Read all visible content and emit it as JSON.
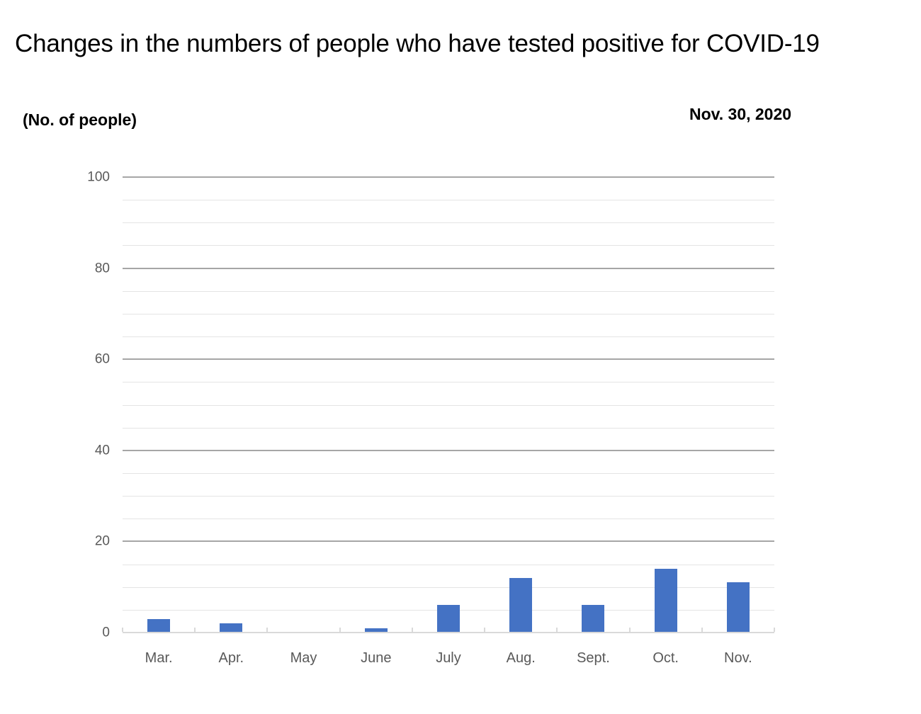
{
  "header": {
    "title": "Changes in the numbers of people who have tested positive for COVID-19",
    "unit_label": "(No. of people)",
    "date_label": "Nov. 30, 2020"
  },
  "chart_data": {
    "type": "bar",
    "title": "Changes in the numbers of people who have tested positive for COVID-19",
    "ylabel": "(No. of people)",
    "annotation": "Nov. 30, 2020",
    "categories": [
      "Mar.",
      "Apr.",
      "May",
      "June",
      "July",
      "Aug.",
      "Sept.",
      "Oct.",
      "Nov."
    ],
    "values": [
      3,
      2,
      0,
      1,
      6,
      12,
      6,
      14,
      11
    ],
    "xlabel": "",
    "ylim": [
      0,
      100
    ],
    "y_major_step": 20,
    "y_minor_step": 5,
    "y_tick_labels": [
      "0",
      "20",
      "40",
      "60",
      "80",
      "100"
    ],
    "grid": "on",
    "legend": "none",
    "colors": {
      "bar": "#4472c4",
      "major_gridline": "#a6a6a6",
      "minor_gridline": "#e4e4e4",
      "axis_line": "#d9d9d9",
      "axis_tick": "#d9d9d9",
      "tick_label": "#595959",
      "title": "#000000"
    }
  }
}
